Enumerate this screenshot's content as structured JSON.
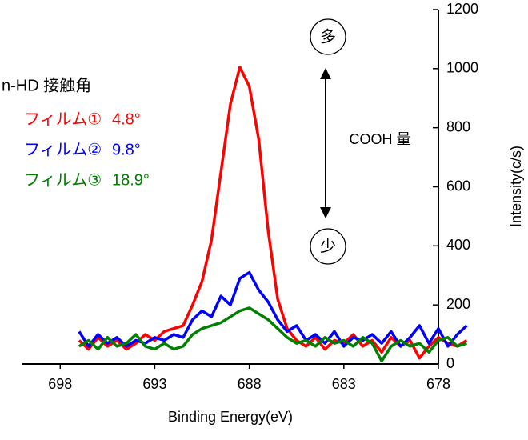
{
  "chart_data": {
    "type": "line",
    "x_label": "Binding Energy(eV)",
    "y_label": "Intensity(c/s)",
    "legend_title": "n-HD 接触角",
    "legend_position": "left",
    "annotations": {
      "high": "多",
      "low": "少",
      "arrow_label": "COOH 量"
    },
    "xlim": [
      700,
      678
    ],
    "xticks": [
      698,
      693,
      688,
      683,
      678
    ],
    "ylim": [
      0,
      1200
    ],
    "yticks": [
      0,
      200,
      400,
      600,
      800,
      1000,
      1200
    ],
    "y_axis_side": "right",
    "grid": false,
    "x": [
      697,
      696.5,
      696,
      695.5,
      695,
      694.5,
      694,
      693.5,
      693,
      692.5,
      692,
      691.5,
      691,
      690.5,
      690,
      689.5,
      689,
      688.5,
      688,
      687.5,
      687,
      686.5,
      686,
      685.5,
      685,
      684.5,
      684,
      683.5,
      683,
      682.5,
      682,
      681.5,
      681,
      680.5,
      680,
      679.5,
      679,
      678.5,
      678,
      677.5,
      677,
      676.5
    ],
    "series": [
      {
        "name": "フィルム①",
        "label": "4.8°",
        "color": "#ff0000",
        "values": [
          80,
          50,
          90,
          60,
          80,
          50,
          70,
          100,
          80,
          110,
          120,
          130,
          200,
          280,
          420,
          650,
          880,
          1005,
          940,
          760,
          450,
          220,
          120,
          80,
          60,
          90,
          50,
          80,
          70,
          100,
          60,
          80,
          40,
          90,
          60,
          80,
          20,
          60,
          90,
          70,
          60,
          80
        ]
      },
      {
        "name": "フィルム②",
        "label": "9.8°",
        "color": "#0000ff",
        "values": [
          110,
          60,
          100,
          70,
          90,
          60,
          80,
          70,
          90,
          80,
          100,
          90,
          150,
          180,
          160,
          230,
          200,
          290,
          310,
          250,
          210,
          150,
          110,
          130,
          80,
          100,
          70,
          110,
          60,
          90,
          80,
          100,
          70,
          110,
          60,
          90,
          130,
          70,
          120,
          60,
          100,
          130
        ]
      },
      {
        "name": "フィルム③",
        "label": "18.9°",
        "color": "#008000",
        "values": [
          60,
          80,
          50,
          90,
          60,
          70,
          100,
          60,
          50,
          70,
          50,
          60,
          100,
          120,
          130,
          140,
          160,
          180,
          190,
          170,
          150,
          120,
          90,
          70,
          80,
          60,
          90,
          70,
          80,
          60,
          90,
          70,
          10,
          60,
          80,
          60,
          70,
          40,
          80,
          90,
          60,
          70
        ]
      }
    ]
  }
}
